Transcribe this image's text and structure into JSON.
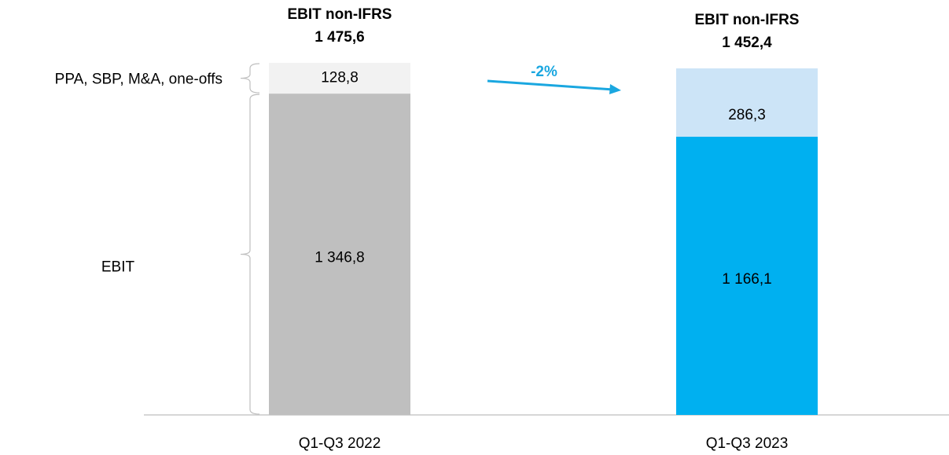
{
  "chart_data": {
    "type": "stacked-bar",
    "categories": [
      "Q1-Q3 2022",
      "Q1-Q3 2023"
    ],
    "series": [
      {
        "name": "EBIT",
        "color": [
          "#bfbfbf",
          "#00b0f0"
        ],
        "values": [
          1346.8,
          1166.1
        ],
        "value_labels": [
          "1 346,8",
          "1 166,1"
        ]
      },
      {
        "name": "PPA, SBP, M&A, one-offs",
        "color": [
          "#f2f2f2",
          "#cce4f7"
        ],
        "values": [
          128.8,
          286.3
        ],
        "value_labels": [
          "128,8",
          "286,3"
        ]
      }
    ],
    "total_title": "EBIT non-IFRS",
    "totals": [
      1475.6,
      1452.4
    ],
    "totals_labels": [
      "1 475,6",
      "1 452,4"
    ],
    "annotation": "-2%",
    "annotation_color": "#1aa7e0",
    "ylim": [
      0,
      1500
    ]
  }
}
